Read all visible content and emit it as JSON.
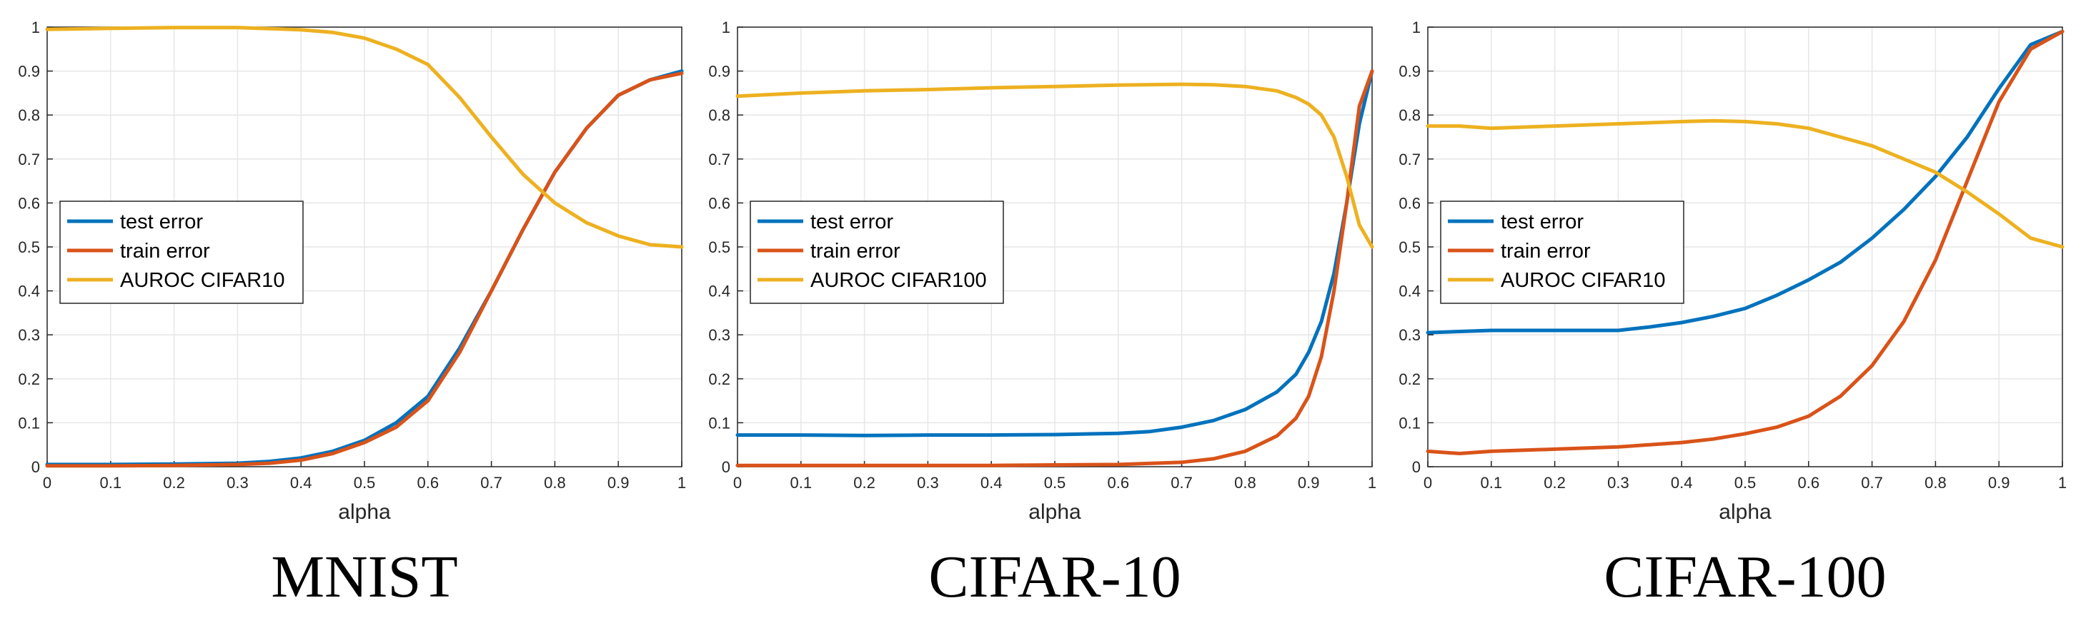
{
  "colors": {
    "test": "#0072BD",
    "train": "#D95319",
    "auroc": "#EDB120",
    "grid": "#e6e6e6",
    "axis": "#262626"
  },
  "chart_data": [
    {
      "type": "line",
      "caption": "MNIST",
      "xlabel": "alpha",
      "xlim": [
        0,
        1
      ],
      "ylim": [
        0,
        1
      ],
      "xticks": [
        "0",
        "0.1",
        "0.2",
        "0.3",
        "0.4",
        "0.5",
        "0.6",
        "0.7",
        "0.8",
        "0.9",
        "1"
      ],
      "yticks": [
        "0",
        "0.1",
        "0.2",
        "0.3",
        "0.4",
        "0.5",
        "0.6",
        "0.7",
        "0.8",
        "0.9",
        "1"
      ],
      "grid": true,
      "legend_position": "middle-left",
      "series": [
        {
          "name": "test error",
          "color_key": "test",
          "x": [
            0,
            0.1,
            0.2,
            0.3,
            0.35,
            0.4,
            0.45,
            0.5,
            0.55,
            0.6,
            0.65,
            0.7,
            0.75,
            0.8,
            0.85,
            0.9,
            0.95,
            1
          ],
          "y": [
            0.005,
            0.005,
            0.006,
            0.008,
            0.012,
            0.02,
            0.035,
            0.06,
            0.1,
            0.16,
            0.27,
            0.4,
            0.54,
            0.67,
            0.77,
            0.845,
            0.88,
            0.9
          ]
        },
        {
          "name": "train error",
          "color_key": "train",
          "x": [
            0,
            0.1,
            0.2,
            0.3,
            0.35,
            0.4,
            0.45,
            0.5,
            0.55,
            0.6,
            0.65,
            0.7,
            0.75,
            0.8,
            0.85,
            0.9,
            0.95,
            1
          ],
          "y": [
            0.002,
            0.002,
            0.003,
            0.005,
            0.008,
            0.015,
            0.03,
            0.055,
            0.09,
            0.15,
            0.26,
            0.4,
            0.54,
            0.67,
            0.77,
            0.845,
            0.88,
            0.895
          ]
        },
        {
          "name": "AUROC CIFAR10",
          "color_key": "auroc",
          "x": [
            0,
            0.1,
            0.2,
            0.3,
            0.4,
            0.45,
            0.5,
            0.55,
            0.6,
            0.65,
            0.7,
            0.75,
            0.8,
            0.85,
            0.9,
            0.95,
            1
          ],
          "y": [
            0.995,
            0.997,
            0.999,
            0.999,
            0.994,
            0.988,
            0.975,
            0.95,
            0.915,
            0.84,
            0.75,
            0.665,
            0.6,
            0.555,
            0.525,
            0.505,
            0.5
          ]
        }
      ]
    },
    {
      "type": "line",
      "caption": "CIFAR-10",
      "xlabel": "alpha",
      "xlim": [
        0,
        1
      ],
      "ylim": [
        0,
        1
      ],
      "xticks": [
        "0",
        "0.1",
        "0.2",
        "0.3",
        "0.4",
        "0.5",
        "0.6",
        "0.7",
        "0.8",
        "0.9",
        "1"
      ],
      "yticks": [
        "0",
        "0.1",
        "0.2",
        "0.3",
        "0.4",
        "0.5",
        "0.6",
        "0.7",
        "0.8",
        "0.9",
        "1"
      ],
      "grid": true,
      "legend_position": "middle-left",
      "series": [
        {
          "name": "test error",
          "color_key": "test",
          "x": [
            0,
            0.1,
            0.2,
            0.3,
            0.4,
            0.5,
            0.6,
            0.65,
            0.7,
            0.75,
            0.8,
            0.85,
            0.88,
            0.9,
            0.92,
            0.94,
            0.96,
            0.98,
            1
          ],
          "y": [
            0.072,
            0.072,
            0.071,
            0.072,
            0.072,
            0.073,
            0.076,
            0.08,
            0.09,
            0.105,
            0.13,
            0.17,
            0.21,
            0.26,
            0.33,
            0.44,
            0.6,
            0.78,
            0.9
          ]
        },
        {
          "name": "train error",
          "color_key": "train",
          "x": [
            0,
            0.1,
            0.2,
            0.3,
            0.4,
            0.5,
            0.6,
            0.7,
            0.75,
            0.8,
            0.85,
            0.88,
            0.9,
            0.92,
            0.94,
            0.96,
            0.98,
            1
          ],
          "y": [
            0.003,
            0.003,
            0.003,
            0.003,
            0.003,
            0.004,
            0.005,
            0.01,
            0.018,
            0.035,
            0.07,
            0.11,
            0.16,
            0.25,
            0.4,
            0.6,
            0.82,
            0.9
          ]
        },
        {
          "name": "AUROC CIFAR100",
          "color_key": "auroc",
          "x": [
            0,
            0.1,
            0.2,
            0.3,
            0.4,
            0.5,
            0.6,
            0.7,
            0.75,
            0.8,
            0.85,
            0.88,
            0.9,
            0.92,
            0.94,
            0.96,
            0.98,
            1
          ],
          "y": [
            0.843,
            0.85,
            0.855,
            0.858,
            0.862,
            0.865,
            0.868,
            0.87,
            0.869,
            0.865,
            0.855,
            0.84,
            0.825,
            0.8,
            0.75,
            0.66,
            0.55,
            0.5
          ]
        }
      ]
    },
    {
      "type": "line",
      "caption": "CIFAR-100",
      "xlabel": "alpha",
      "xlim": [
        0,
        1
      ],
      "ylim": [
        0,
        1
      ],
      "xticks": [
        "0",
        "0.1",
        "0.2",
        "0.3",
        "0.4",
        "0.5",
        "0.6",
        "0.7",
        "0.8",
        "0.9",
        "1"
      ],
      "yticks": [
        "0",
        "0.1",
        "0.2",
        "0.3",
        "0.4",
        "0.5",
        "0.6",
        "0.7",
        "0.8",
        "0.9",
        "1"
      ],
      "grid": true,
      "legend_position": "middle-left",
      "series": [
        {
          "name": "test error",
          "color_key": "test",
          "x": [
            0,
            0.1,
            0.2,
            0.3,
            0.35,
            0.4,
            0.45,
            0.5,
            0.55,
            0.6,
            0.65,
            0.7,
            0.75,
            0.8,
            0.85,
            0.9,
            0.95,
            1
          ],
          "y": [
            0.305,
            0.31,
            0.31,
            0.31,
            0.318,
            0.328,
            0.342,
            0.36,
            0.39,
            0.425,
            0.465,
            0.52,
            0.585,
            0.66,
            0.75,
            0.86,
            0.96,
            0.99
          ]
        },
        {
          "name": "train error",
          "color_key": "train",
          "x": [
            0,
            0.05,
            0.1,
            0.2,
            0.3,
            0.4,
            0.45,
            0.5,
            0.55,
            0.6,
            0.65,
            0.7,
            0.75,
            0.8,
            0.85,
            0.9,
            0.95,
            1
          ],
          "y": [
            0.035,
            0.03,
            0.035,
            0.04,
            0.045,
            0.055,
            0.063,
            0.075,
            0.09,
            0.115,
            0.16,
            0.23,
            0.33,
            0.47,
            0.65,
            0.83,
            0.95,
            0.99
          ]
        },
        {
          "name": "AUROC CIFAR10",
          "color_key": "auroc",
          "x": [
            0,
            0.05,
            0.1,
            0.2,
            0.3,
            0.4,
            0.45,
            0.5,
            0.55,
            0.6,
            0.65,
            0.7,
            0.75,
            0.8,
            0.85,
            0.9,
            0.95,
            1
          ],
          "y": [
            0.775,
            0.775,
            0.77,
            0.775,
            0.78,
            0.785,
            0.787,
            0.785,
            0.78,
            0.77,
            0.75,
            0.73,
            0.7,
            0.67,
            0.625,
            0.575,
            0.52,
            0.5
          ]
        }
      ]
    }
  ]
}
